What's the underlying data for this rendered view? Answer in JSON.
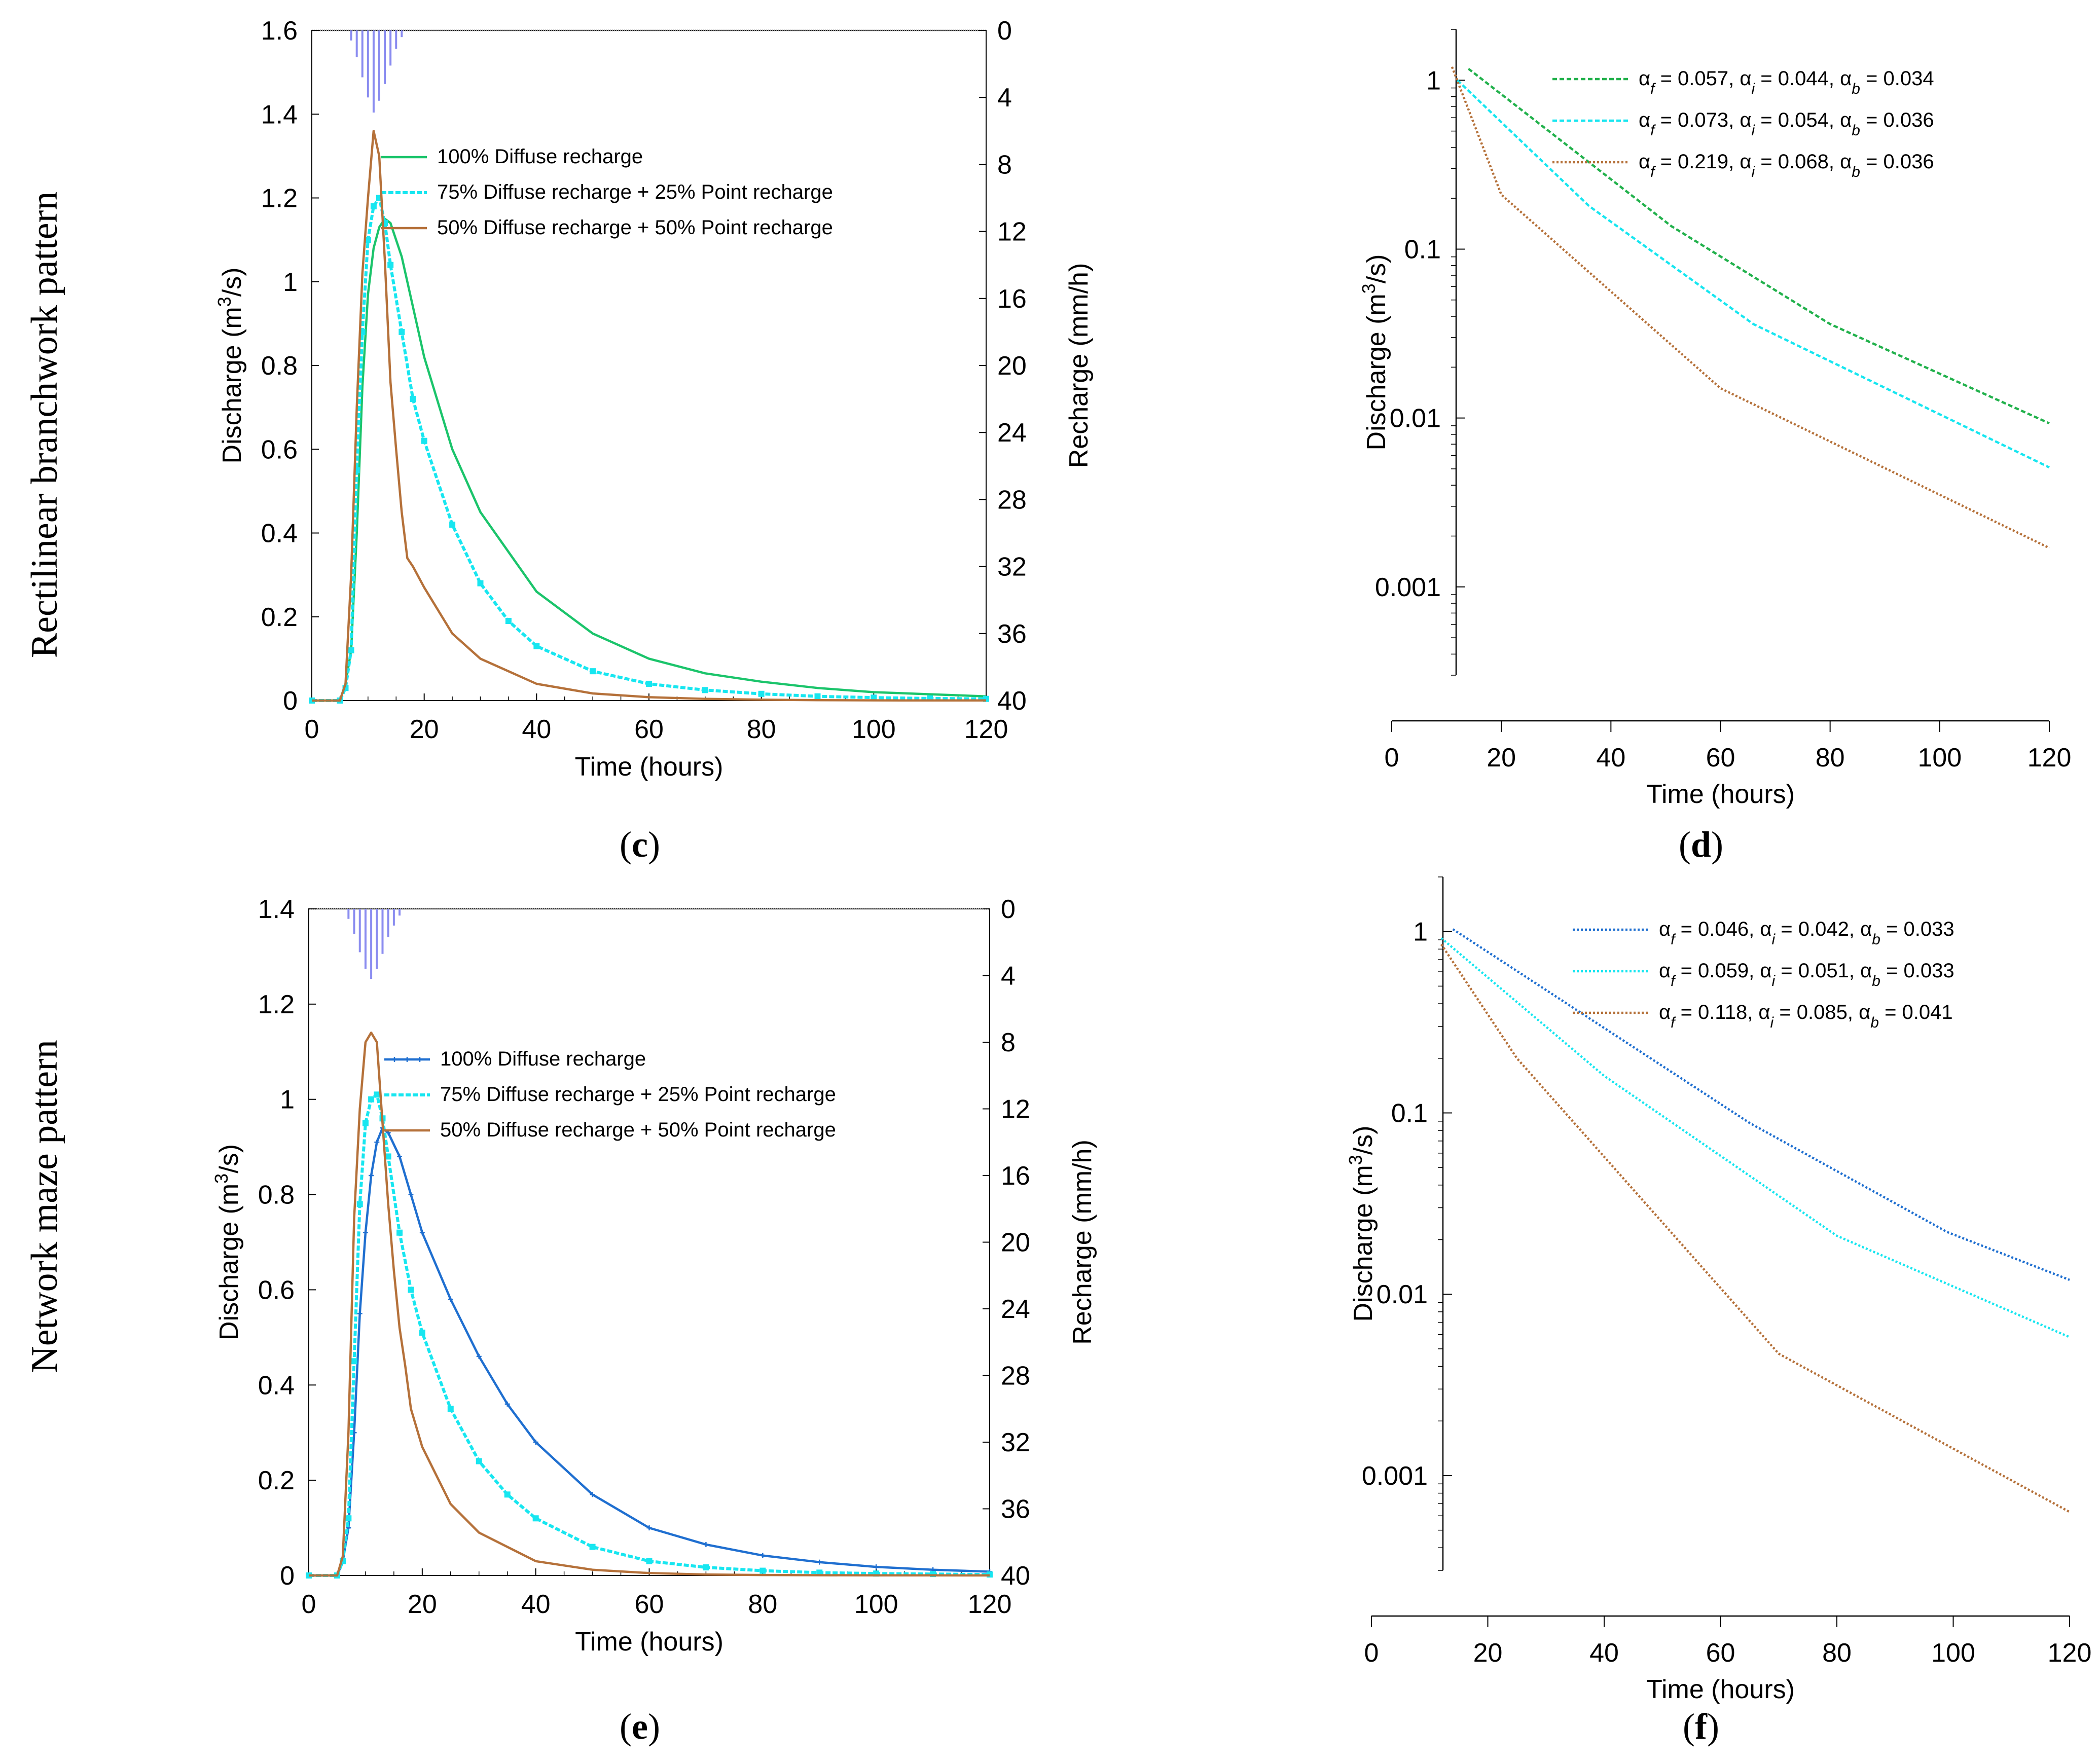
{
  "row_labels": [
    "Rectilinear branchwork pattern",
    "Network maze pattern"
  ],
  "chart_data": [
    {
      "id": "c",
      "type": "line",
      "panel_label": "c",
      "scale": "linear",
      "xlabel": "Time (hours)",
      "ylabel": "Discharge (m³/s)",
      "y2label": "Recharge (mm/h)",
      "xlim": [
        0,
        120
      ],
      "ylim": [
        0,
        1.6
      ],
      "y2lim": [
        0,
        40
      ],
      "xticks": [
        "0",
        "20",
        "40",
        "60",
        "80",
        "100",
        "120"
      ],
      "yticks": [
        "0",
        "0.2",
        "0.4",
        "0.6",
        "0.8",
        "1",
        "1.2",
        "1.4",
        "1.6"
      ],
      "y2ticks": [
        "0",
        "4",
        "8",
        "12",
        "16",
        "20",
        "24",
        "28",
        "32",
        "36",
        "40"
      ],
      "recharge": {
        "t": [
          7,
          8,
          9,
          10,
          11,
          12,
          13,
          14,
          15,
          16
        ],
        "r": [
          0.6,
          1.6,
          2.8,
          4.0,
          4.9,
          4.2,
          3.2,
          2.1,
          1.1,
          0.4
        ],
        "color": "#8a8cf0"
      },
      "series": [
        {
          "name": "100% Diffuse recharge",
          "color": "#1bc46b",
          "style": "solid",
          "x": [
            0,
            5,
            6,
            7,
            8,
            9,
            10,
            11,
            12,
            13,
            14,
            16,
            20,
            25,
            30,
            40,
            50,
            60,
            70,
            80,
            90,
            100,
            110,
            120
          ],
          "y": [
            0,
            0,
            0.04,
            0.12,
            0.4,
            0.75,
            0.97,
            1.08,
            1.13,
            1.15,
            1.14,
            1.06,
            0.82,
            0.6,
            0.45,
            0.26,
            0.16,
            0.1,
            0.065,
            0.045,
            0.03,
            0.02,
            0.015,
            0.01
          ]
        },
        {
          "name": "75% Diffuse recharge + 25% Point recharge",
          "color": "#17e6f0",
          "style": "marker-square",
          "x": [
            0,
            5,
            6,
            7,
            8,
            9,
            10,
            11,
            12,
            13,
            14,
            16,
            18,
            20,
            25,
            30,
            35,
            40,
            50,
            60,
            70,
            80,
            90,
            100,
            110,
            120
          ],
          "y": [
            0,
            0,
            0.03,
            0.12,
            0.55,
            0.88,
            1.1,
            1.18,
            1.2,
            1.14,
            1.04,
            0.88,
            0.72,
            0.62,
            0.42,
            0.28,
            0.19,
            0.13,
            0.07,
            0.04,
            0.025,
            0.016,
            0.01,
            0.007,
            0.005,
            0.004
          ]
        },
        {
          "name": "50% Diffuse recharge + 50% Point recharge",
          "color": "#b5713a",
          "style": "solid",
          "x": [
            0,
            5,
            6,
            7,
            8,
            9,
            10,
            11,
            12,
            13,
            14,
            15,
            16,
            17,
            18,
            20,
            25,
            30,
            40,
            50,
            60,
            70,
            80,
            90,
            100,
            110,
            120
          ],
          "y": [
            0,
            0,
            0.04,
            0.3,
            0.7,
            1.02,
            1.2,
            1.36,
            1.3,
            1.05,
            0.76,
            0.6,
            0.45,
            0.34,
            0.32,
            0.27,
            0.16,
            0.1,
            0.04,
            0.017,
            0.008,
            0.004,
            0.002,
            0.001,
            0.0005,
            0.0003,
            0.0002
          ]
        }
      ]
    },
    {
      "id": "d",
      "type": "line",
      "panel_label": "d",
      "scale": "log",
      "xlabel": "Time (hours)",
      "ylabel": "Discharge (m³/s)",
      "xlim": [
        0,
        120
      ],
      "ylim": [
        0.0003,
        2
      ],
      "xticks": [
        "0",
        "20",
        "40",
        "60",
        "80",
        "100",
        "120"
      ],
      "yticks": [
        "0.001",
        "0.01",
        "0.1",
        "1"
      ],
      "series": [
        {
          "name": "αf = 0.057, αi = 0.044, αb = 0.034",
          "alpha_f": "0.057",
          "alpha_i": "0.044",
          "alpha_b": "0.034",
          "color": "#22b14c",
          "style": "dash",
          "x": [
            14,
            51,
            80,
            120
          ],
          "y": [
            1.17,
            0.137,
            0.036,
            0.0093
          ]
        },
        {
          "name": "αf = 0.073, αi = 0.054, αb = 0.036",
          "alpha_f": "0.073",
          "alpha_i": "0.054",
          "alpha_b": "0.036",
          "color": "#17e6f0",
          "style": "dash",
          "x": [
            12,
            36,
            66,
            120
          ],
          "y": [
            1.0,
            0.18,
            0.036,
            0.0051
          ]
        },
        {
          "name": "αf = 0.219, αi = 0.068, αb = 0.036",
          "alpha_f": "0.219",
          "alpha_i": "0.068",
          "alpha_b": "0.036",
          "color": "#b5713a",
          "style": "dot",
          "x": [
            11,
            20,
            60,
            120
          ],
          "y": [
            1.2,
            0.21,
            0.015,
            0.0017
          ]
        }
      ]
    },
    {
      "id": "e",
      "type": "line",
      "panel_label": "e",
      "scale": "linear",
      "xlabel": "Time (hours)",
      "ylabel": "Discharge (m³/s)",
      "y2label": "Recharge (mm/h)",
      "xlim": [
        0,
        120
      ],
      "ylim": [
        0,
        1.4
      ],
      "y2lim": [
        0,
        40
      ],
      "xticks": [
        "0",
        "20",
        "40",
        "60",
        "80",
        "100",
        "120"
      ],
      "yticks": [
        "0",
        "0.2",
        "0.4",
        "0.6",
        "0.8",
        "1",
        "1.2",
        "1.4"
      ],
      "y2ticks": [
        "0",
        "4",
        "8",
        "12",
        "16",
        "20",
        "24",
        "28",
        "32",
        "36",
        "40"
      ],
      "recharge": {
        "t": [
          7,
          8,
          9,
          10,
          11,
          12,
          13,
          14,
          15,
          16
        ],
        "r": [
          0.6,
          1.5,
          2.6,
          3.6,
          4.2,
          3.6,
          2.7,
          1.7,
          1.0,
          0.4
        ],
        "color": "#8a8cf0"
      },
      "series": [
        {
          "name": "100% Diffuse recharge",
          "color": "#1f6fd0",
          "style": "marker-plus",
          "x": [
            0,
            5,
            6,
            7,
            8,
            9,
            10,
            11,
            12,
            13,
            14,
            16,
            18,
            20,
            25,
            30,
            35,
            40,
            50,
            60,
            70,
            80,
            90,
            100,
            110,
            120
          ],
          "y": [
            0,
            0,
            0.03,
            0.1,
            0.3,
            0.55,
            0.72,
            0.84,
            0.91,
            0.94,
            0.93,
            0.88,
            0.8,
            0.72,
            0.58,
            0.46,
            0.36,
            0.28,
            0.17,
            0.1,
            0.065,
            0.042,
            0.028,
            0.018,
            0.012,
            0.008
          ]
        },
        {
          "name": "75% Diffuse recharge + 25% Point recharge",
          "color": "#17e6f0",
          "style": "marker-square",
          "x": [
            0,
            5,
            6,
            7,
            8,
            9,
            10,
            11,
            12,
            13,
            14,
            16,
            18,
            20,
            25,
            30,
            35,
            40,
            50,
            60,
            70,
            80,
            90,
            100,
            110,
            120
          ],
          "y": [
            0,
            0,
            0.03,
            0.12,
            0.45,
            0.78,
            0.95,
            1.0,
            1.01,
            0.96,
            0.88,
            0.72,
            0.6,
            0.51,
            0.35,
            0.24,
            0.17,
            0.12,
            0.06,
            0.03,
            0.017,
            0.01,
            0.006,
            0.004,
            0.003,
            0.002
          ]
        },
        {
          "name": "50% Diffuse recharge + 50% Point recharge",
          "color": "#b5713a",
          "style": "solid",
          "x": [
            0,
            5,
            6,
            7,
            8,
            9,
            10,
            11,
            12,
            13,
            14,
            15,
            16,
            17,
            18,
            20,
            25,
            30,
            40,
            50,
            60,
            70,
            80,
            90,
            100,
            110,
            120
          ],
          "y": [
            0,
            0,
            0.04,
            0.3,
            0.75,
            0.98,
            1.12,
            1.14,
            1.12,
            0.95,
            0.78,
            0.64,
            0.52,
            0.44,
            0.35,
            0.27,
            0.15,
            0.09,
            0.03,
            0.012,
            0.005,
            0.002,
            0.001,
            0.0005,
            0.0003,
            0.0002,
            0.0001
          ]
        }
      ]
    },
    {
      "id": "f",
      "type": "line",
      "panel_label": "f",
      "scale": "log",
      "xlabel": "Time (hours)",
      "ylabel": "Discharge (m³/s)",
      "xlim": [
        0,
        120
      ],
      "ylim": [
        0.0003,
        2
      ],
      "xticks": [
        "0",
        "20",
        "40",
        "60",
        "80",
        "100",
        "120"
      ],
      "yticks": [
        "0.001",
        "0.01",
        "0.1",
        "1"
      ],
      "series": [
        {
          "name": "αf = 0.046, αi = 0.042, αb = 0.033",
          "alpha_f": "0.046",
          "alpha_i": "0.042",
          "alpha_b": "0.033",
          "color": "#1f6fd0",
          "style": "dot",
          "x": [
            14,
            65,
            99,
            120
          ],
          "y": [
            1.03,
            0.088,
            0.022,
            0.012
          ]
        },
        {
          "name": "αf = 0.059, αi = 0.051, αb = 0.033",
          "alpha_f": "0.059",
          "alpha_i": "0.051",
          "alpha_b": "0.033",
          "color": "#17e6f0",
          "style": "dot",
          "x": [
            12,
            40,
            80,
            120
          ],
          "y": [
            0.92,
            0.16,
            0.021,
            0.0058
          ]
        },
        {
          "name": "αf = 0.118, αi = 0.085, αb = 0.041",
          "alpha_f": "0.118",
          "alpha_i": "0.085",
          "alpha_b": "0.041",
          "color": "#b5713a",
          "style": "dot",
          "x": [
            12,
            25,
            70,
            120
          ],
          "y": [
            0.85,
            0.2,
            0.0047,
            0.00063
          ]
        }
      ]
    }
  ]
}
